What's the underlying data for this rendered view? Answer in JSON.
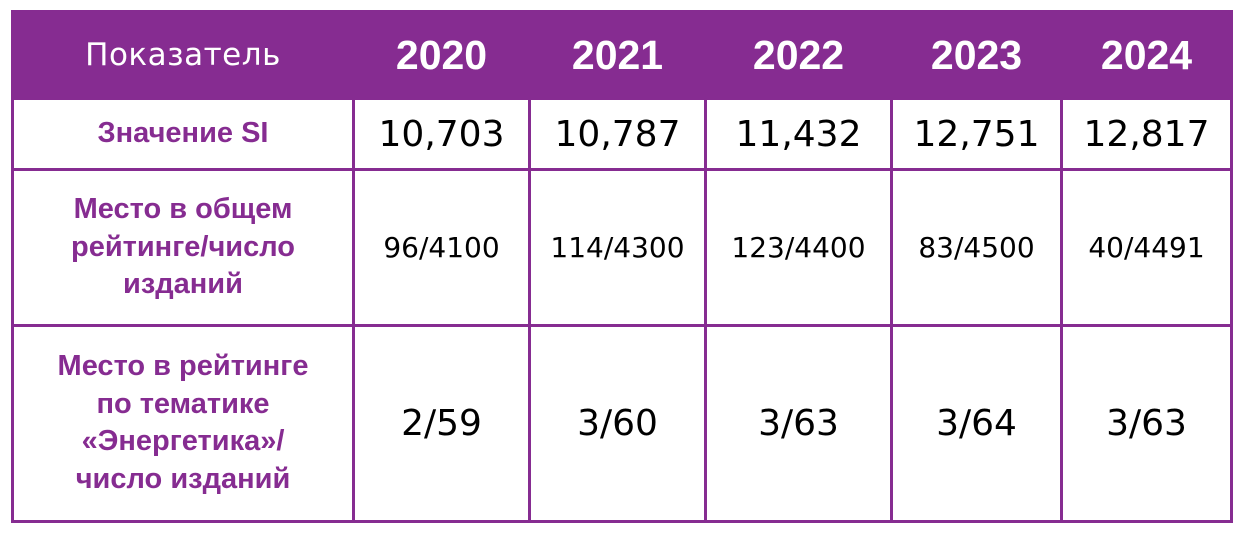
{
  "table": {
    "header": {
      "metric": "Показатель",
      "years": [
        "2020",
        "2021",
        "2022",
        "2023",
        "2024"
      ]
    },
    "rows": [
      {
        "label": "Значение SI",
        "values": [
          "10,703",
          "10,787",
          "11,432",
          "12,751",
          "12,817"
        ]
      },
      {
        "label_lines": [
          "Место в общем",
          "рейтинге/число",
          "изданий"
        ],
        "values": [
          "96/4100",
          "114/4300",
          "123/4400",
          "83/4500",
          "40/4491"
        ]
      },
      {
        "label_lines": [
          "Место в рейтинге",
          "по тематике",
          "«Энергетика»/",
          "число изданий"
        ],
        "values": [
          "2/59",
          "3/60",
          "3/63",
          "3/64",
          "3/63"
        ]
      }
    ]
  },
  "colors": {
    "accent": "#862c91",
    "header_text": "#ffffff",
    "value_text": "#000000"
  }
}
